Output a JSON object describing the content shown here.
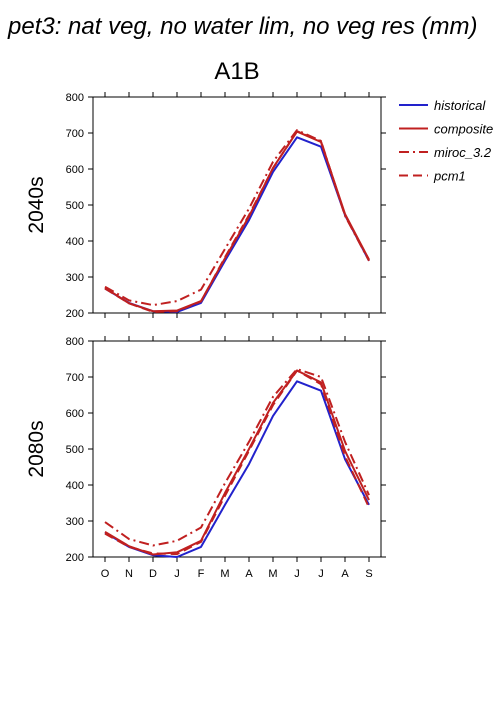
{
  "figure": {
    "title": "pet3: nat veg, no water lim, no veg res (mm)",
    "scenario": "A1B",
    "panels": [
      "2040s",
      "2080s"
    ]
  },
  "legend": [
    {
      "name": "historical",
      "color": "#2222cc",
      "dash": "solid"
    },
    {
      "name": "composite",
      "color": "#c02020",
      "dash": "solid"
    },
    {
      "name": "miroc_3.2",
      "color": "#c02020",
      "dash": "dashdot"
    },
    {
      "name": "pcm1",
      "color": "#c02020",
      "dash": "dash"
    }
  ],
  "chart_data": [
    {
      "type": "line",
      "panel": "2040s",
      "title": "A1B",
      "ylabel": "2040s",
      "categories": [
        "O",
        "N",
        "D",
        "J",
        "F",
        "M",
        "A",
        "M",
        "J",
        "J",
        "A",
        "S"
      ],
      "ylim": [
        200,
        800
      ],
      "yticks": [
        200,
        300,
        400,
        500,
        600,
        700,
        800
      ],
      "series": [
        {
          "name": "historical",
          "values": [
            268,
            228,
            205,
            203,
            228,
            345,
            458,
            592,
            688,
            662,
            472,
            345
          ]
        },
        {
          "name": "composite",
          "values": [
            270,
            227,
            205,
            207,
            233,
            352,
            468,
            603,
            704,
            675,
            475,
            348
          ]
        },
        {
          "name": "miroc_3.2",
          "values": [
            273,
            235,
            222,
            233,
            265,
            378,
            490,
            620,
            708,
            678,
            470,
            345
          ]
        },
        {
          "name": "pcm1",
          "values": [
            268,
            227,
            203,
            205,
            232,
            355,
            472,
            602,
            705,
            676,
            472,
            348
          ]
        }
      ]
    },
    {
      "type": "line",
      "panel": "2080s",
      "ylabel": "2080s",
      "categories": [
        "O",
        "N",
        "D",
        "J",
        "F",
        "M",
        "A",
        "M",
        "J",
        "J",
        "A",
        "S"
      ],
      "ylim": [
        200,
        800
      ],
      "yticks": [
        200,
        300,
        400,
        500,
        600,
        700,
        800
      ],
      "series": [
        {
          "name": "historical",
          "values": [
            268,
            228,
            205,
            200,
            228,
            345,
            458,
            592,
            688,
            662,
            472,
            345
          ]
        },
        {
          "name": "composite",
          "values": [
            270,
            230,
            207,
            213,
            245,
            378,
            500,
            628,
            718,
            685,
            495,
            358
          ]
        },
        {
          "name": "miroc_3.2",
          "values": [
            297,
            250,
            232,
            245,
            282,
            405,
            520,
            645,
            722,
            700,
            520,
            372
          ]
        },
        {
          "name": "pcm1",
          "values": [
            265,
            228,
            210,
            208,
            242,
            370,
            495,
            622,
            718,
            680,
            480,
            338
          ]
        }
      ]
    }
  ]
}
